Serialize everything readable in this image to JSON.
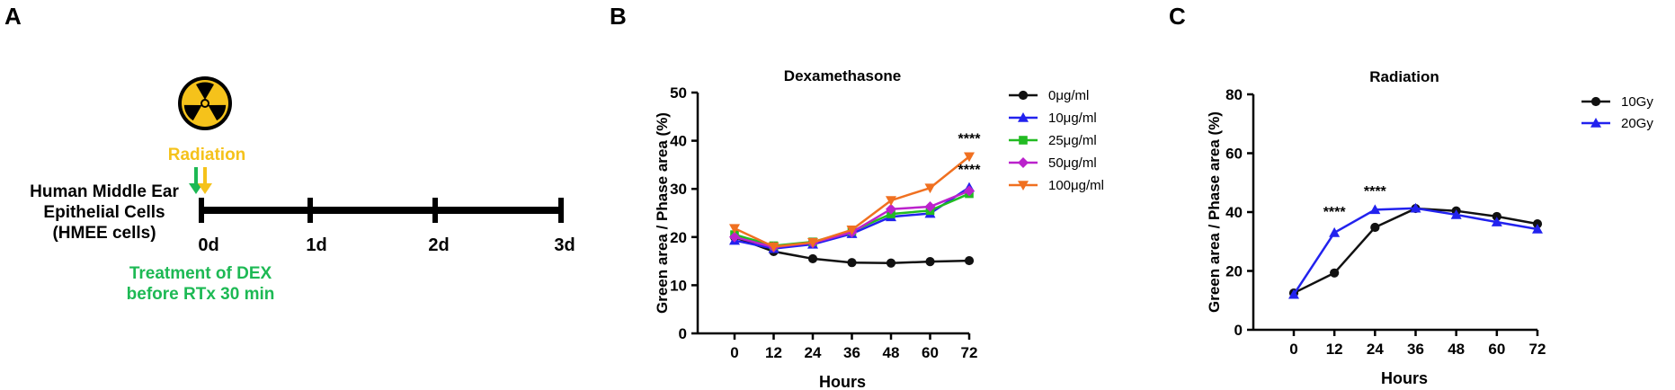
{
  "panels": {
    "a": {
      "letter": "A",
      "radiation_label": "Radiation",
      "cell_label_lines": [
        "Human Middle Ear",
        "Epithelial Cells",
        "(HMEE cells)"
      ],
      "timeline_ticks": [
        "0d",
        "1d",
        "2d",
        "3d"
      ],
      "treatment_lines": [
        "Treatment of DEX",
        "before RTx 30 min"
      ],
      "colors": {
        "radiation": "#f5c21b",
        "treatment": "#1db954"
      }
    },
    "b": {
      "letter": "B"
    },
    "c": {
      "letter": "C"
    }
  },
  "chart_data": [
    {
      "type": "line",
      "title": "Dexamethasone",
      "xlabel": "Hours",
      "ylabel": "Green area / Phase area (%)",
      "x": [
        0,
        12,
        24,
        36,
        48,
        60,
        72
      ],
      "xticks": [
        "0",
        "12",
        "24",
        "36",
        "48",
        "60",
        "72"
      ],
      "ylim": [
        0,
        50
      ],
      "yticks": [
        0,
        10,
        20,
        30,
        40,
        50
      ],
      "legend_position": "right",
      "series": [
        {
          "name": "0μg/ml",
          "marker": "circle",
          "color": "#111111",
          "values": [
            20,
            17,
            15.5,
            14.7,
            14.6,
            14.9,
            15.1
          ]
        },
        {
          "name": "10μg/ml",
          "marker": "triangle",
          "color": "#2222ee",
          "values": [
            19.3,
            17.6,
            18.5,
            20.7,
            24.2,
            24.9,
            30.3
          ]
        },
        {
          "name": "25μg/ml",
          "marker": "square",
          "color": "#22bb22",
          "values": [
            20.5,
            18.2,
            19,
            21.2,
            24.8,
            25.5,
            29
          ]
        },
        {
          "name": "50μg/ml",
          "marker": "diamond",
          "color": "#bb22cc",
          "values": [
            20,
            17.9,
            18.8,
            21,
            25.8,
            26.3,
            29.6
          ]
        },
        {
          "name": "100μg/ml",
          "marker": "tri-down",
          "color": "#f07020",
          "values": [
            21.8,
            18,
            18.9,
            21.5,
            27.6,
            30.2,
            36.7
          ]
        }
      ],
      "annotations": [
        {
          "text": "****",
          "x": 72,
          "y": 39.5
        },
        {
          "text": "****",
          "x": 72,
          "y": 33.0
        }
      ]
    },
    {
      "type": "line",
      "title": "Radiation",
      "xlabel": "Hours",
      "ylabel": "Green area / Phase area (%)",
      "x": [
        0,
        12,
        24,
        36,
        48,
        60,
        72
      ],
      "xticks": [
        "0",
        "12",
        "24",
        "36",
        "48",
        "60",
        "72"
      ],
      "ylim": [
        0,
        80
      ],
      "yticks": [
        0,
        20,
        40,
        60,
        80
      ],
      "legend_position": "right",
      "series": [
        {
          "name": "10Gy",
          "marker": "circle",
          "color": "#111111",
          "values": [
            12.5,
            19.3,
            34.8,
            41.2,
            40.4,
            38.5,
            36
          ]
        },
        {
          "name": "20Gy",
          "marker": "triangle",
          "color": "#2222ee",
          "values": [
            12,
            33,
            40.8,
            41.3,
            39.1,
            36.6,
            34.2
          ]
        }
      ],
      "annotations": [
        {
          "text": "****",
          "x": 12,
          "y": 38.5
        },
        {
          "text": "****",
          "x": 24,
          "y": 45.5
        }
      ]
    }
  ]
}
